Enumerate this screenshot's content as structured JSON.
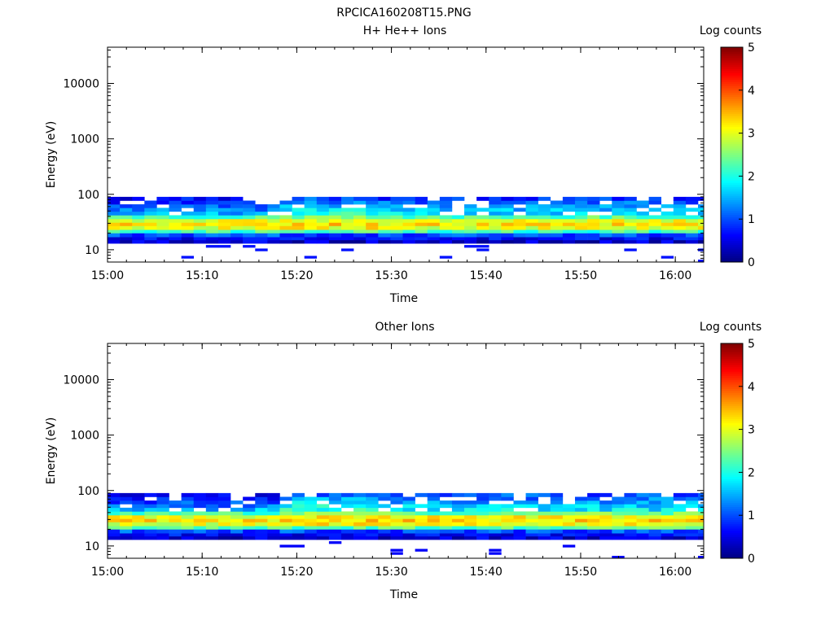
{
  "page_title": "RPCICA160208T15.PNG",
  "colors": {
    "colormap": [
      "#00007f",
      "#0000ff",
      "#007fff",
      "#00ffff",
      "#7fff7f",
      "#ffff00",
      "#ff7f00",
      "#ff0000",
      "#7f0000"
    ],
    "missing": "#ffffff"
  },
  "chart_data": [
    {
      "type": "heatmap",
      "title": "H+ He++ Ions",
      "xlabel": "Time",
      "ylabel": "Energy (eV)",
      "y_scale": "log",
      "ylim": [
        6,
        45000
      ],
      "xlim": [
        "15:00",
        "16:03"
      ],
      "x_ticks": [
        "15:00",
        "15:10",
        "15:20",
        "15:30",
        "15:40",
        "15:50",
        "16:00"
      ],
      "y_ticks": [
        "10",
        "100",
        "1000",
        "10000"
      ],
      "colorbar": {
        "label": "Log counts",
        "range": [
          0,
          5
        ],
        "ticks": [
          "0",
          "1",
          "2",
          "3",
          "4",
          "5"
        ]
      },
      "time_start": "15:00",
      "time_end": "16:03",
      "energy_bins_eV": [
        6,
        7,
        8,
        9.5,
        11,
        13,
        15,
        17,
        20,
        23,
        27,
        31,
        36,
        42,
        49,
        57,
        66,
        77,
        90
      ],
      "time_bin_minutes": 1.3,
      "band_log_counts": [
        [
          0.4,
          0.6,
          1.0,
          2.2,
          3.0,
          3.2,
          3.0,
          2.2,
          1.5,
          1.2,
          1.0,
          0.8,
          0.6
        ],
        [
          0.4,
          0.6,
          1.0,
          2.3,
          3.1,
          3.3,
          3.1,
          2.5,
          2.0,
          1.8,
          1.6,
          1.3,
          1.0
        ],
        [
          0.4,
          0.6,
          1.0,
          2.2,
          3.0,
          3.2,
          3.0,
          2.3,
          1.7,
          1.5,
          1.3,
          1.1,
          0.9
        ]
      ],
      "band_segments_end": [
        "15:18",
        "15:28",
        "16:03"
      ],
      "sparse_low_energy_counts": 0.7
    },
    {
      "type": "heatmap",
      "title": "Other Ions",
      "xlabel": "Time",
      "ylabel": "Energy (eV)",
      "y_scale": "log",
      "ylim": [
        6,
        45000
      ],
      "xlim": [
        "15:00",
        "16:03"
      ],
      "x_ticks": [
        "15:00",
        "15:10",
        "15:20",
        "15:30",
        "15:40",
        "15:50",
        "16:00"
      ],
      "y_ticks": [
        "10",
        "100",
        "1000",
        "10000"
      ],
      "colorbar": {
        "label": "Log counts",
        "range": [
          0,
          5
        ],
        "ticks": [
          "0",
          "1",
          "2",
          "3",
          "4",
          "5"
        ]
      },
      "time_start": "15:00",
      "time_end": "16:03",
      "energy_bins_eV": [
        6,
        7,
        8,
        9.5,
        11,
        13,
        15,
        17,
        20,
        23,
        27,
        31,
        36,
        42,
        49,
        57,
        66,
        77,
        90
      ],
      "time_bin_minutes": 1.3,
      "band_log_counts": [
        [
          0.4,
          0.6,
          1.0,
          2.2,
          3.0,
          3.2,
          3.0,
          2.2,
          1.5,
          1.2,
          1.0,
          0.8,
          0.6
        ],
        [
          0.4,
          0.6,
          1.0,
          2.3,
          3.2,
          3.4,
          3.2,
          2.6,
          2.1,
          1.9,
          1.7,
          1.4,
          1.1
        ],
        [
          0.4,
          0.6,
          1.0,
          2.3,
          3.1,
          3.3,
          3.1,
          2.4,
          1.8,
          1.6,
          1.4,
          1.2,
          1.0
        ]
      ],
      "band_segments_end": [
        "15:18",
        "15:28",
        "16:03"
      ],
      "sparse_low_energy_counts": 0.6
    }
  ]
}
